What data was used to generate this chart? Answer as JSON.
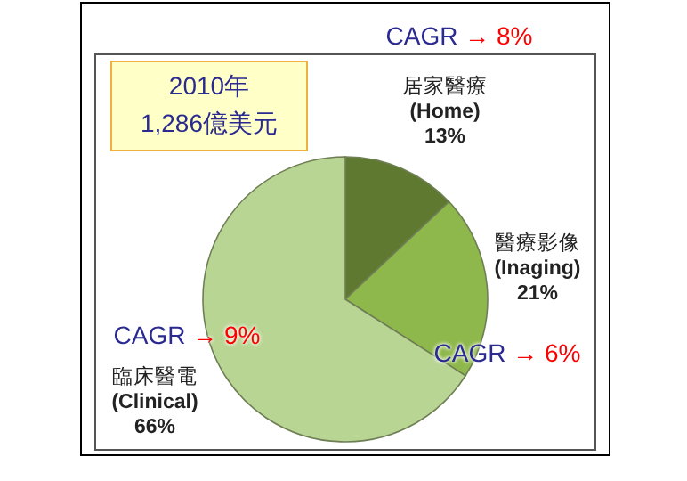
{
  "chart_data": {
    "type": "pie",
    "title": "2010年 1,286億美元",
    "categories": [
      "居家醫療 (Home)",
      "醫療影像 (Inaging)",
      "臨床醫電 (Clinical)"
    ],
    "values": [
      13,
      21,
      66
    ],
    "colors": [
      "#5f7a30",
      "#8fb84c",
      "#b9d594"
    ],
    "value_labels": [
      "13%",
      "21%",
      "66%"
    ],
    "annotations": [
      "CAGR → 8%",
      "CAGR → 6%",
      "CAGR → 9%"
    ]
  }
}
